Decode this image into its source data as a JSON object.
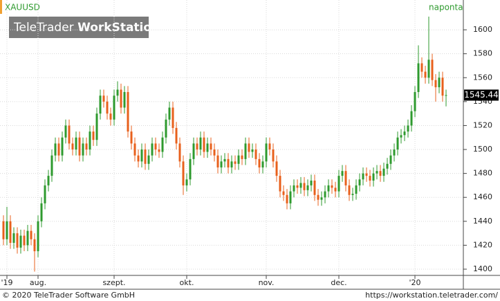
{
  "chart_data": {
    "type": "candlestick",
    "title": "XAUUSD",
    "interval": "naponta",
    "logo_brand": "TeleTrader",
    "logo_product": "WorkStation",
    "copyright": "© 2020 TeleTrader Software GmbH",
    "url": "https://workstation.teletrader.com/",
    "up_color": "#2e9a2e",
    "down_color": "#e8601c",
    "grid": true,
    "ylim": [
      1394.8,
      1624.9
    ],
    "yticks": [
      1400,
      1420,
      1440,
      1460,
      1480,
      1500,
      1520,
      1540,
      1560,
      1580,
      1600
    ],
    "categories": [
      null,
      "'19",
      null,
      null,
      null,
      null,
      null,
      null,
      null,
      null,
      "aug.",
      null,
      null,
      null,
      null,
      null,
      null,
      null,
      null,
      null,
      null,
      null,
      null,
      null,
      null,
      null,
      null,
      null,
      null,
      null,
      null,
      null,
      "szept.",
      null,
      null,
      null,
      null,
      null,
      null,
      null,
      null,
      null,
      null,
      null,
      null,
      null,
      null,
      null,
      null,
      null,
      null,
      null,
      null,
      "okt.",
      null,
      null,
      null,
      null,
      null,
      null,
      null,
      null,
      null,
      null,
      null,
      null,
      null,
      null,
      null,
      null,
      null,
      null,
      null,
      null,
      null,
      null,
      "nov.",
      null,
      null,
      null,
      null,
      null,
      null,
      null,
      null,
      null,
      null,
      null,
      null,
      null,
      null,
      null,
      null,
      null,
      null,
      null,
      null,
      "dec.",
      null,
      null,
      null,
      null,
      null,
      null,
      null,
      null,
      null,
      null,
      null,
      null,
      null,
      null,
      null,
      null,
      null,
      null,
      null,
      null,
      null,
      "'20",
      null,
      null,
      null,
      null,
      null,
      null,
      null,
      null,
      null
    ],
    "open": [
      1440,
      1425,
      1440,
      1422,
      1430,
      1418,
      1428,
      1420,
      1432,
      1425,
      1415,
      1440,
      1455,
      1470,
      1478,
      1495,
      1505,
      1495,
      1510,
      1520,
      1505,
      1500,
      1510,
      1495,
      1505,
      1500,
      1515,
      1508,
      1530,
      1545,
      1540,
      1530,
      1525,
      1545,
      1550,
      1535,
      1548,
      1515,
      1505,
      1495,
      1490,
      1500,
      1488,
      1495,
      1505,
      1500,
      1498,
      1510,
      1525,
      1535,
      1518,
      1505,
      1490,
      1470,
      1475,
      1492,
      1505,
      1500,
      1510,
      1498,
      1505,
      1500,
      1495,
      1485,
      1490,
      1492,
      1485,
      1490,
      1488,
      1495,
      1492,
      1505,
      1498,
      1500,
      1492,
      1485,
      1490,
      1505,
      1500,
      1490,
      1478,
      1465,
      1462,
      1455,
      1465,
      1470,
      1468,
      1472,
      1466,
      1470,
      1474,
      1462,
      1458,
      1460,
      1465,
      1470,
      1468,
      1465,
      1478,
      1482,
      1470,
      1462,
      1463,
      1470,
      1475,
      1480,
      1478,
      1474,
      1480,
      1482,
      1478,
      1484,
      1488,
      1495,
      1500,
      1510,
      1512,
      1515,
      1520,
      1532,
      1548,
      1572,
      1565,
      1560,
      1575,
      1558,
      1552,
      1560,
      1545
    ],
    "high": [
      1445,
      1452,
      1445,
      1435,
      1435,
      1433,
      1433,
      1437,
      1437,
      1430,
      1445,
      1460,
      1475,
      1483,
      1500,
      1510,
      1510,
      1515,
      1525,
      1525,
      1510,
      1515,
      1515,
      1510,
      1510,
      1520,
      1520,
      1535,
      1550,
      1550,
      1545,
      1535,
      1550,
      1557,
      1555,
      1553,
      1553,
      1520,
      1510,
      1500,
      1505,
      1505,
      1500,
      1510,
      1510,
      1505,
      1515,
      1530,
      1540,
      1540,
      1523,
      1510,
      1495,
      1480,
      1497,
      1510,
      1510,
      1515,
      1515,
      1510,
      1510,
      1505,
      1500,
      1495,
      1497,
      1497,
      1495,
      1495,
      1500,
      1500,
      1510,
      1510,
      1505,
      1505,
      1497,
      1495,
      1510,
      1510,
      1505,
      1495,
      1483,
      1470,
      1467,
      1470,
      1475,
      1475,
      1477,
      1477,
      1475,
      1479,
      1479,
      1467,
      1465,
      1470,
      1475,
      1475,
      1473,
      1483,
      1487,
      1487,
      1475,
      1468,
      1475,
      1480,
      1485,
      1485,
      1483,
      1485,
      1487,
      1487,
      1489,
      1493,
      1500,
      1505,
      1515,
      1517,
      1520,
      1525,
      1537,
      1553,
      1587,
      1577,
      1570,
      1611,
      1580,
      1563,
      1565,
      1565,
      1550
    ],
    "low": [
      1420,
      1420,
      1417,
      1417,
      1413,
      1413,
      1415,
      1415,
      1420,
      1398,
      1410,
      1435,
      1450,
      1465,
      1473,
      1490,
      1490,
      1490,
      1505,
      1500,
      1495,
      1495,
      1490,
      1490,
      1495,
      1495,
      1503,
      1503,
      1525,
      1535,
      1525,
      1520,
      1520,
      1540,
      1530,
      1530,
      1510,
      1500,
      1490,
      1485,
      1485,
      1483,
      1483,
      1490,
      1495,
      1493,
      1493,
      1505,
      1520,
      1513,
      1500,
      1485,
      1462,
      1465,
      1470,
      1487,
      1495,
      1495,
      1493,
      1493,
      1495,
      1490,
      1480,
      1480,
      1485,
      1480,
      1480,
      1483,
      1483,
      1487,
      1487,
      1493,
      1493,
      1487,
      1480,
      1480,
      1485,
      1495,
      1485,
      1473,
      1460,
      1457,
      1450,
      1450,
      1460,
      1463,
      1463,
      1461,
      1461,
      1465,
      1457,
      1453,
      1453,
      1455,
      1460,
      1463,
      1460,
      1460,
      1473,
      1465,
      1457,
      1457,
      1458,
      1465,
      1470,
      1473,
      1469,
      1469,
      1475,
      1473,
      1473,
      1479,
      1483,
      1490,
      1495,
      1505,
      1507,
      1510,
      1515,
      1527,
      1543,
      1560,
      1555,
      1555,
      1553,
      1540,
      1547,
      1540,
      1536
    ],
    "close": [
      1425,
      1440,
      1422,
      1430,
      1418,
      1428,
      1420,
      1432,
      1425,
      1415,
      1440,
      1455,
      1470,
      1478,
      1495,
      1505,
      1495,
      1510,
      1520,
      1505,
      1500,
      1510,
      1495,
      1505,
      1500,
      1515,
      1508,
      1530,
      1545,
      1540,
      1530,
      1525,
      1545,
      1550,
      1535,
      1548,
      1515,
      1505,
      1495,
      1490,
      1500,
      1488,
      1495,
      1505,
      1500,
      1498,
      1510,
      1525,
      1535,
      1518,
      1505,
      1490,
      1470,
      1475,
      1492,
      1505,
      1500,
      1510,
      1498,
      1505,
      1500,
      1495,
      1485,
      1490,
      1492,
      1485,
      1490,
      1488,
      1495,
      1492,
      1505,
      1498,
      1500,
      1492,
      1485,
      1490,
      1505,
      1500,
      1490,
      1478,
      1465,
      1462,
      1455,
      1465,
      1470,
      1468,
      1472,
      1466,
      1470,
      1474,
      1462,
      1458,
      1460,
      1465,
      1470,
      1468,
      1465,
      1478,
      1482,
      1470,
      1462,
      1463,
      1470,
      1475,
      1480,
      1478,
      1474,
      1480,
      1482,
      1478,
      1484,
      1488,
      1495,
      1500,
      1510,
      1512,
      1515,
      1520,
      1532,
      1548,
      1572,
      1565,
      1560,
      1575,
      1558,
      1552,
      1560,
      1545,
      1545.44
    ]
  }
}
